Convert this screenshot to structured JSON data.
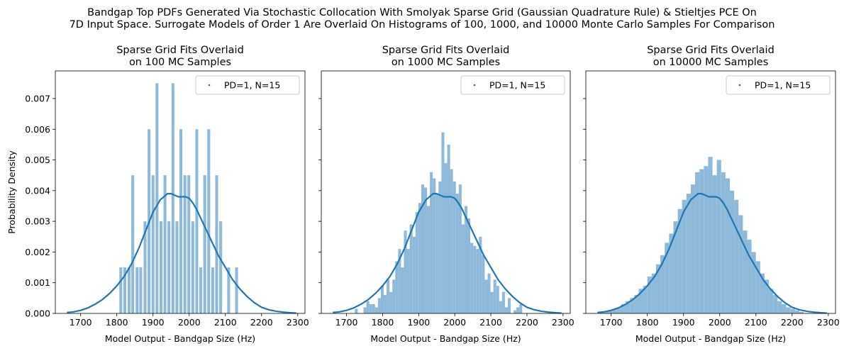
{
  "figure": {
    "suptitle_line1": "Bandgap Top PDFs Generated Via Stochastic Collocation With Smolyak Sparse Grid (Gaussian Quadrature Rule) & Stieltjes PCE On",
    "suptitle_line2": "7D Input Space. Surrogate Models of Order 1 Are Overlaid On Histograms of 100, 1000, and 10000 Monte Carlo Samples For Comparison"
  },
  "colors": {
    "hist": "#8db9da",
    "line": "#1f77b4"
  },
  "chart_data": [
    {
      "type": "bar",
      "title_line1": "Sparse Grid Fits Overlaid",
      "title_line2": "on 100 MC Samples",
      "xlabel": "Model Output - Bandgap Size (Hz)",
      "ylabel": "Probability Density",
      "xlim": [
        1630,
        2320
      ],
      "ylim": [
        0,
        0.0079
      ],
      "xticks": [
        1700,
        1800,
        1900,
        2000,
        2100,
        2200,
        2300
      ],
      "yticks": [
        "0.000",
        "0.001",
        "0.002",
        "0.003",
        "0.004",
        "0.005",
        "0.006",
        "0.007"
      ],
      "show_ytick_labels": true,
      "legend": {
        "label": "PD=1, N=15",
        "position": "top-right"
      },
      "bins": [
        [
          1807,
          1815,
          0.0015
        ],
        [
          1818,
          1826,
          0.0015
        ],
        [
          1830,
          1838,
          0.0015
        ],
        [
          1840,
          1848,
          0.0045
        ],
        [
          1852,
          1860,
          0.0015
        ],
        [
          1862,
          1870,
          0.0015
        ],
        [
          1874,
          1882,
          0.003
        ],
        [
          1885,
          1893,
          0.006
        ],
        [
          1896,
          1904,
          0.0045
        ],
        [
          1907,
          1915,
          0.0075
        ],
        [
          1918,
          1926,
          0.003
        ],
        [
          1929,
          1937,
          0.0045
        ],
        [
          1940,
          1948,
          0.003
        ],
        [
          1951,
          1959,
          0.0075
        ],
        [
          1962,
          1970,
          0.003
        ],
        [
          1973,
          1981,
          0.006
        ],
        [
          1984,
          1992,
          0.0045
        ],
        [
          1995,
          2003,
          0.0045
        ],
        [
          2006,
          2014,
          0.003
        ],
        [
          2017,
          2025,
          0.006
        ],
        [
          2028,
          2036,
          0.0015
        ],
        [
          2039,
          2047,
          0.0045
        ],
        [
          2050,
          2058,
          0.006
        ],
        [
          2061,
          2069,
          0.0015
        ],
        [
          2072,
          2080,
          0.0045
        ],
        [
          2083,
          2091,
          0.003
        ],
        [
          2105,
          2113,
          0.0015
        ],
        [
          2127,
          2135,
          0.0015
        ]
      ]
    },
    {
      "type": "bar",
      "title_line1": "Sparse Grid Fits Overlaid",
      "title_line2": "on 1000 MC Samples",
      "xlabel": "Model Output - Bandgap Size (Hz)",
      "ylabel": "",
      "xlim": [
        1630,
        2320
      ],
      "ylim": [
        0,
        0.0079
      ],
      "xticks": [
        1700,
        1800,
        1900,
        2000,
        2100,
        2200,
        2300
      ],
      "yticks": [
        "0.000",
        "0.001",
        "0.002",
        "0.003",
        "0.004",
        "0.005",
        "0.006",
        "0.007"
      ],
      "show_ytick_labels": false,
      "legend": {
        "label": "PD=1, N=15",
        "position": "top-right"
      },
      "bins": [
        [
          1723,
          1731,
          0.00015
        ],
        [
          1747,
          1755,
          0.0002
        ],
        [
          1755,
          1763,
          0.0004
        ],
        [
          1763,
          1771,
          0.0003
        ],
        [
          1771,
          1779,
          0.0003
        ],
        [
          1779,
          1787,
          0.0002
        ],
        [
          1787,
          1795,
          0.0005
        ],
        [
          1795,
          1803,
          0.0009
        ],
        [
          1803,
          1811,
          0.0006
        ],
        [
          1811,
          1819,
          0.0011
        ],
        [
          1819,
          1827,
          0.0007
        ],
        [
          1827,
          1835,
          0.0011
        ],
        [
          1835,
          1843,
          0.0017
        ],
        [
          1843,
          1851,
          0.0021
        ],
        [
          1851,
          1859,
          0.0015
        ],
        [
          1859,
          1867,
          0.0027
        ],
        [
          1867,
          1875,
          0.0021
        ],
        [
          1875,
          1883,
          0.0029
        ],
        [
          1883,
          1891,
          0.0025
        ],
        [
          1891,
          1899,
          0.0033
        ],
        [
          1899,
          1907,
          0.0036
        ],
        [
          1907,
          1915,
          0.0042
        ],
        [
          1915,
          1923,
          0.0041
        ],
        [
          1923,
          1931,
          0.0035
        ],
        [
          1931,
          1939,
          0.0046
        ],
        [
          1939,
          1947,
          0.0044
        ],
        [
          1947,
          1955,
          0.0039
        ],
        [
          1955,
          1963,
          0.0043
        ],
        [
          1963,
          1971,
          0.0059
        ],
        [
          1971,
          1979,
          0.0049
        ],
        [
          1979,
          1987,
          0.0055
        ],
        [
          1987,
          1995,
          0.0047
        ],
        [
          1995,
          2003,
          0.0043
        ],
        [
          2003,
          2011,
          0.0039
        ],
        [
          2011,
          2019,
          0.0042
        ],
        [
          2019,
          2027,
          0.0029
        ],
        [
          2027,
          2035,
          0.0035
        ],
        [
          2035,
          2043,
          0.0031
        ],
        [
          2043,
          2051,
          0.0023
        ],
        [
          2051,
          2059,
          0.0022
        ],
        [
          2059,
          2067,
          0.0021
        ],
        [
          2067,
          2075,
          0.0025
        ],
        [
          2075,
          2083,
          0.0019
        ],
        [
          2083,
          2091,
          0.0011
        ],
        [
          2091,
          2099,
          0.0013
        ],
        [
          2099,
          2107,
          0.0007
        ],
        [
          2107,
          2115,
          0.0011
        ],
        [
          2115,
          2123,
          0.0009
        ],
        [
          2123,
          2131,
          0.0004
        ],
        [
          2131,
          2139,
          0.0007
        ],
        [
          2139,
          2147,
          0.0002
        ],
        [
          2147,
          2155,
          0.0005
        ],
        [
          2163,
          2171,
          0.0001
        ],
        [
          2171,
          2179,
          0.0002
        ],
        [
          2179,
          2187,
          0.0003
        ]
      ]
    },
    {
      "type": "bar",
      "title_line1": "Sparse Grid Fits Overlaid",
      "title_line2": "on 10000 MC Samples",
      "xlabel": "Model Output - Bandgap Size (Hz)",
      "ylabel": "",
      "xlim": [
        1630,
        2320
      ],
      "ylim": [
        0,
        0.0079
      ],
      "xticks": [
        1700,
        1800,
        1900,
        2000,
        2100,
        2200,
        2300
      ],
      "yticks": [
        "0.000",
        "0.001",
        "0.002",
        "0.003",
        "0.004",
        "0.005",
        "0.006",
        "0.007"
      ],
      "show_ytick_labels": false,
      "legend": {
        "label": "PD=1, N=15",
        "position": "top-right"
      },
      "bins": [
        [
          1668,
          1680,
          5e-05
        ],
        [
          1680,
          1692,
          7e-05
        ],
        [
          1692,
          1704,
          0.0001
        ],
        [
          1704,
          1716,
          0.00015
        ],
        [
          1716,
          1728,
          0.0002
        ],
        [
          1728,
          1740,
          0.0003
        ],
        [
          1740,
          1752,
          0.0004
        ],
        [
          1752,
          1764,
          0.0005
        ],
        [
          1764,
          1776,
          0.0006
        ],
        [
          1776,
          1788,
          0.0008
        ],
        [
          1788,
          1800,
          0.0009
        ],
        [
          1800,
          1812,
          0.0012
        ],
        [
          1812,
          1824,
          0.0013
        ],
        [
          1824,
          1836,
          0.0016
        ],
        [
          1836,
          1848,
          0.0019
        ],
        [
          1848,
          1860,
          0.0023
        ],
        [
          1860,
          1872,
          0.0026
        ],
        [
          1872,
          1884,
          0.003
        ],
        [
          1884,
          1896,
          0.0034
        ],
        [
          1896,
          1908,
          0.0037
        ],
        [
          1908,
          1920,
          0.0039
        ],
        [
          1920,
          1932,
          0.0042
        ],
        [
          1932,
          1944,
          0.0046
        ],
        [
          1944,
          1956,
          0.0047
        ],
        [
          1956,
          1968,
          0.0048
        ],
        [
          1968,
          1980,
          0.0051
        ],
        [
          1980,
          1992,
          0.0045
        ],
        [
          1992,
          2004,
          0.005
        ],
        [
          2004,
          2016,
          0.0046
        ],
        [
          2016,
          2028,
          0.0044
        ],
        [
          2028,
          2040,
          0.004
        ],
        [
          2040,
          2052,
          0.0037
        ],
        [
          2052,
          2064,
          0.0032
        ],
        [
          2064,
          2076,
          0.0027
        ],
        [
          2076,
          2088,
          0.0024
        ],
        [
          2088,
          2100,
          0.002
        ],
        [
          2100,
          2112,
          0.0017
        ],
        [
          2112,
          2124,
          0.0013
        ],
        [
          2124,
          2136,
          0.0011
        ],
        [
          2136,
          2148,
          0.0008
        ],
        [
          2148,
          2160,
          0.0006
        ],
        [
          2160,
          2172,
          0.0004
        ],
        [
          2172,
          2184,
          0.0003
        ],
        [
          2184,
          2196,
          0.0002
        ],
        [
          2196,
          2208,
          0.00015
        ],
        [
          2208,
          2220,
          0.0001
        ],
        [
          2220,
          2232,
          5e-05
        ]
      ]
    }
  ],
  "pdf_curve": {
    "x": [
      1662,
      1680,
      1700,
      1720,
      1740,
      1760,
      1780,
      1800,
      1820,
      1840,
      1860,
      1880,
      1900,
      1920,
      1940,
      1950,
      1960,
      1970,
      1980,
      1990,
      2000,
      2010,
      2020,
      2040,
      2060,
      2080,
      2100,
      2120,
      2140,
      2160,
      2180,
      2200,
      2220,
      2240,
      2260,
      2280,
      2296
    ],
    "y": [
      3e-05,
      5e-05,
      0.0001,
      0.00018,
      0.0003,
      0.00045,
      0.00065,
      0.0009,
      0.0012,
      0.0016,
      0.0021,
      0.0027,
      0.0033,
      0.0037,
      0.0039,
      0.0039,
      0.00385,
      0.0038,
      0.0038,
      0.0038,
      0.00375,
      0.0036,
      0.0034,
      0.0029,
      0.0024,
      0.0019,
      0.0015,
      0.0011,
      0.0008,
      0.00055,
      0.00035,
      0.0002,
      0.00012,
      7e-05,
      4e-05,
      2e-05,
      1e-05
    ]
  }
}
